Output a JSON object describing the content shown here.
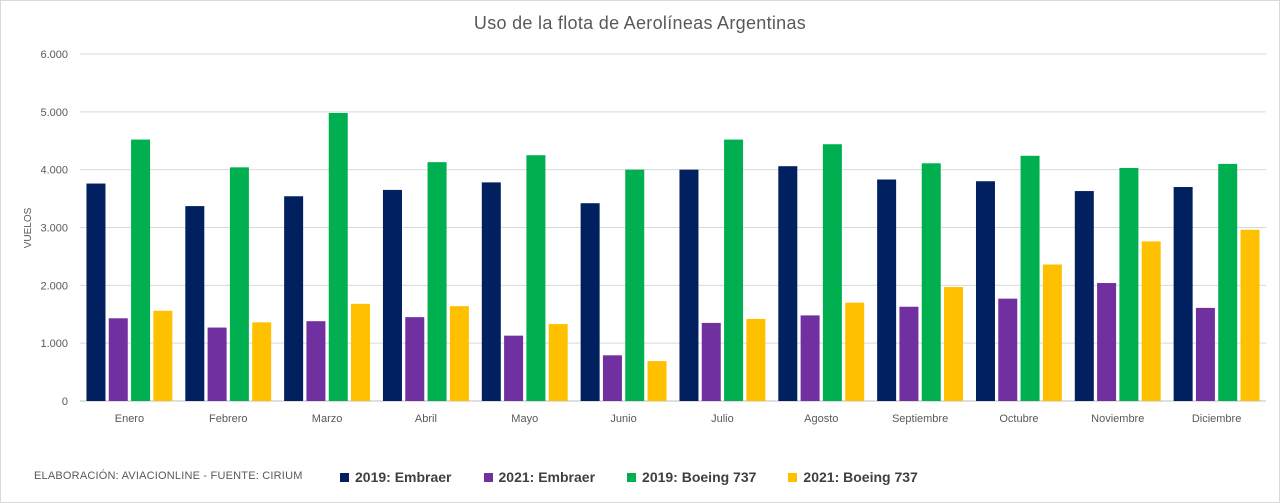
{
  "chart_data": {
    "type": "bar",
    "title": "Uso de la flota de Aerolíneas Argentinas",
    "xlabel": "",
    "ylabel": "VUELOS",
    "ylim": [
      0,
      6000
    ],
    "yticks": [
      "0",
      "1.000",
      "2.000",
      "3.000",
      "4.000",
      "5.000",
      "6.000"
    ],
    "grid": true,
    "legend_position": "bottom",
    "categories": [
      "Enero",
      "Febrero",
      "Marzo",
      "Abril",
      "Mayo",
      "Junio",
      "Julio",
      "Agosto",
      "Septiembre",
      "Octubre",
      "Noviembre",
      "Diciembre"
    ],
    "series": [
      {
        "name": "2019: Embraer",
        "color": "#002060",
        "values": [
          3760,
          3370,
          3540,
          3650,
          3780,
          3420,
          4000,
          4060,
          3830,
          3800,
          3630,
          3700
        ]
      },
      {
        "name": "2021: Embraer",
        "color": "#7030A0",
        "values": [
          1430,
          1270,
          1380,
          1450,
          1130,
          790,
          1350,
          1480,
          1630,
          1770,
          2040,
          1610
        ]
      },
      {
        "name": "2019: Boeing 737",
        "color": "#00B050",
        "values": [
          4520,
          4040,
          4980,
          4130,
          4250,
          4000,
          4520,
          4440,
          4110,
          4240,
          4030,
          4100
        ]
      },
      {
        "name": "2021: Boeing 737",
        "color": "#FFC000",
        "values": [
          1560,
          1360,
          1680,
          1640,
          1330,
          690,
          1420,
          1700,
          1970,
          2360,
          2760,
          2960
        ]
      }
    ]
  },
  "footer": {
    "source_note": "ELABORACIÓN: AVIACIONLINE  -  FUENTE: CIRIUM"
  }
}
